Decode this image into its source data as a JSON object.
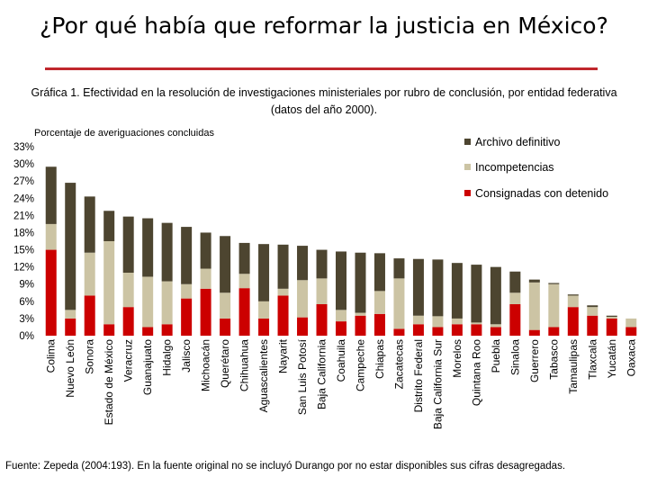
{
  "title": "¿Por qué había que reformar la justicia en México?",
  "caption": "Gráfica 1. Efectividad en la resolución de investigaciones ministeriales por rubro de conclusión, por entidad federativa (datos del año 2000).",
  "source": "Fuente: Zepeda (2004:193). En la fuente original no se incluyó Durango por no estar disponibles sus cifras desagregadas.",
  "colors": {
    "title_rule": "#c0272d",
    "archivo": "#4d4530",
    "incompetencias": "#ccc4a4",
    "consignadas": "#cc0000"
  },
  "chart_data": {
    "type": "bar",
    "stacked": true,
    "ylabel": "Porcentaje de averiguaciones concluidas",
    "ylim": [
      0,
      33
    ],
    "yticks": [
      0,
      3,
      6,
      9,
      12,
      15,
      18,
      21,
      24,
      27,
      30,
      33
    ],
    "ytick_labels": [
      "0%",
      "3%",
      "6%",
      "9%",
      "12%",
      "15%",
      "18%",
      "21%",
      "24%",
      "27%",
      "30%",
      "33%"
    ],
    "legend_position": "top-right",
    "categories": [
      "Colima",
      "Nuevo León",
      "Sonora",
      "Estado de México",
      "Veracruz",
      "Guanajuato",
      "Hidalgo",
      "Jalisco",
      "Michoacán",
      "Querétaro",
      "Chihuahua",
      "Aguascalientes",
      "Nayarit",
      "San Luis Potosí",
      "Baja California",
      "Coahuila",
      "Campeche",
      "Chiapas",
      "Zacatecas",
      "Distrito Federal",
      "Baja California Sur",
      "Morelos",
      "Quintana Roo",
      "Puebla",
      "Sinaloa",
      "Guerrero",
      "Tabasco",
      "Tamaulipas",
      "Tlaxcala",
      "Yucatán",
      "Oaxaca"
    ],
    "series": [
      {
        "name": "Consignadas con detenido",
        "color_key": "consignadas",
        "values": [
          15.0,
          3.0,
          7.0,
          2.0,
          5.0,
          1.5,
          2.0,
          6.5,
          8.2,
          3.0,
          8.3,
          3.0,
          7.0,
          3.2,
          5.5,
          2.5,
          3.5,
          3.8,
          1.2,
          2.0,
          1.5,
          2.0,
          2.0,
          1.5,
          5.5,
          1.0,
          1.5,
          5.0,
          3.5,
          3.0,
          1.5
        ]
      },
      {
        "name": "Incompetencias",
        "color_key": "incompetencias",
        "values": [
          4.5,
          1.5,
          7.5,
          14.5,
          6.0,
          8.8,
          7.5,
          2.5,
          3.5,
          4.5,
          2.5,
          3.0,
          1.2,
          6.5,
          4.5,
          2.0,
          0.5,
          4.0,
          8.8,
          1.5,
          1.9,
          1.0,
          0.3,
          0.5,
          2.0,
          8.3,
          7.5,
          2.0,
          1.5,
          0.3,
          1.5
        ]
      },
      {
        "name": "Archivo definitivo",
        "color_key": "archivo",
        "values": [
          10.0,
          22.2,
          9.8,
          5.3,
          9.8,
          10.2,
          10.2,
          10.0,
          6.3,
          9.9,
          5.4,
          10.0,
          7.7,
          6.0,
          5.0,
          10.2,
          10.5,
          6.6,
          3.5,
          9.9,
          9.9,
          9.7,
          10.1,
          10.0,
          3.7,
          0.5,
          0.2,
          0.2,
          0.3,
          0.2,
          0.0
        ]
      }
    ],
    "legend": [
      "Archivo definitivo",
      "Incompetencias",
      "Consignadas con detenido"
    ]
  }
}
